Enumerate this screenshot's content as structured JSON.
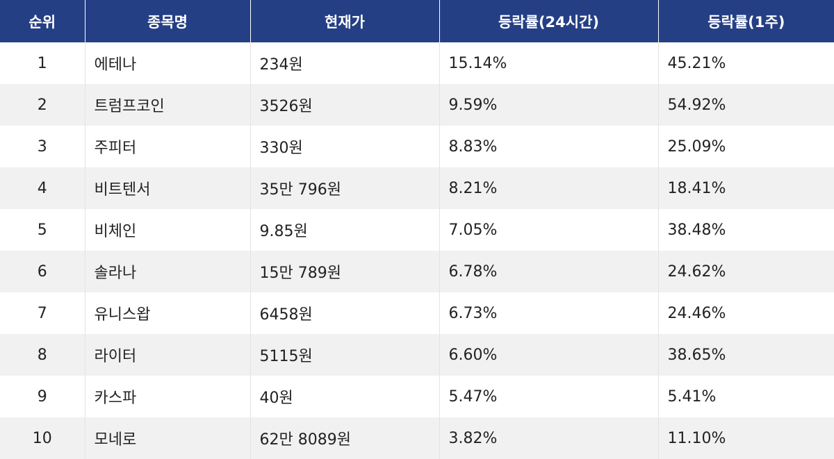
{
  "header": {
    "rank": "순위",
    "name": "종목명",
    "price": "현재가",
    "change_24h": "등락률(24시간)",
    "change_1w": "등락률(1주)"
  },
  "colors": {
    "header_bg": "#253f85",
    "header_text": "#ffffff",
    "row_alt_bg": "#f1f1f1",
    "row_bg": "#ffffff"
  },
  "rows": [
    {
      "rank": "1",
      "name": "에테나",
      "price": "234원",
      "change_24h": "15.14%",
      "change_1w": "45.21%"
    },
    {
      "rank": "2",
      "name": "트럼프코인",
      "price": "3526원",
      "change_24h": "9.59%",
      "change_1w": "54.92%"
    },
    {
      "rank": "3",
      "name": "주피터",
      "price": "330원",
      "change_24h": "8.83%",
      "change_1w": "25.09%"
    },
    {
      "rank": "4",
      "name": "비트텐서",
      "price": "35만 796원",
      "change_24h": "8.21%",
      "change_1w": "18.41%"
    },
    {
      "rank": "5",
      "name": "비체인",
      "price": "9.85원",
      "change_24h": "7.05%",
      "change_1w": "38.48%"
    },
    {
      "rank": "6",
      "name": "솔라나",
      "price": "15만 789원",
      "change_24h": "6.78%",
      "change_1w": "24.62%"
    },
    {
      "rank": "7",
      "name": "유니스왑",
      "price": "6458원",
      "change_24h": "6.73%",
      "change_1w": "24.46%"
    },
    {
      "rank": "8",
      "name": "라이터",
      "price": "5115원",
      "change_24h": "6.60%",
      "change_1w": "38.65%"
    },
    {
      "rank": "9",
      "name": "카스파",
      "price": "40원",
      "change_24h": "5.47%",
      "change_1w": "5.41%"
    },
    {
      "rank": "10",
      "name": "모네로",
      "price": "62만 8089원",
      "change_24h": "3.82%",
      "change_1w": "11.10%"
    }
  ]
}
